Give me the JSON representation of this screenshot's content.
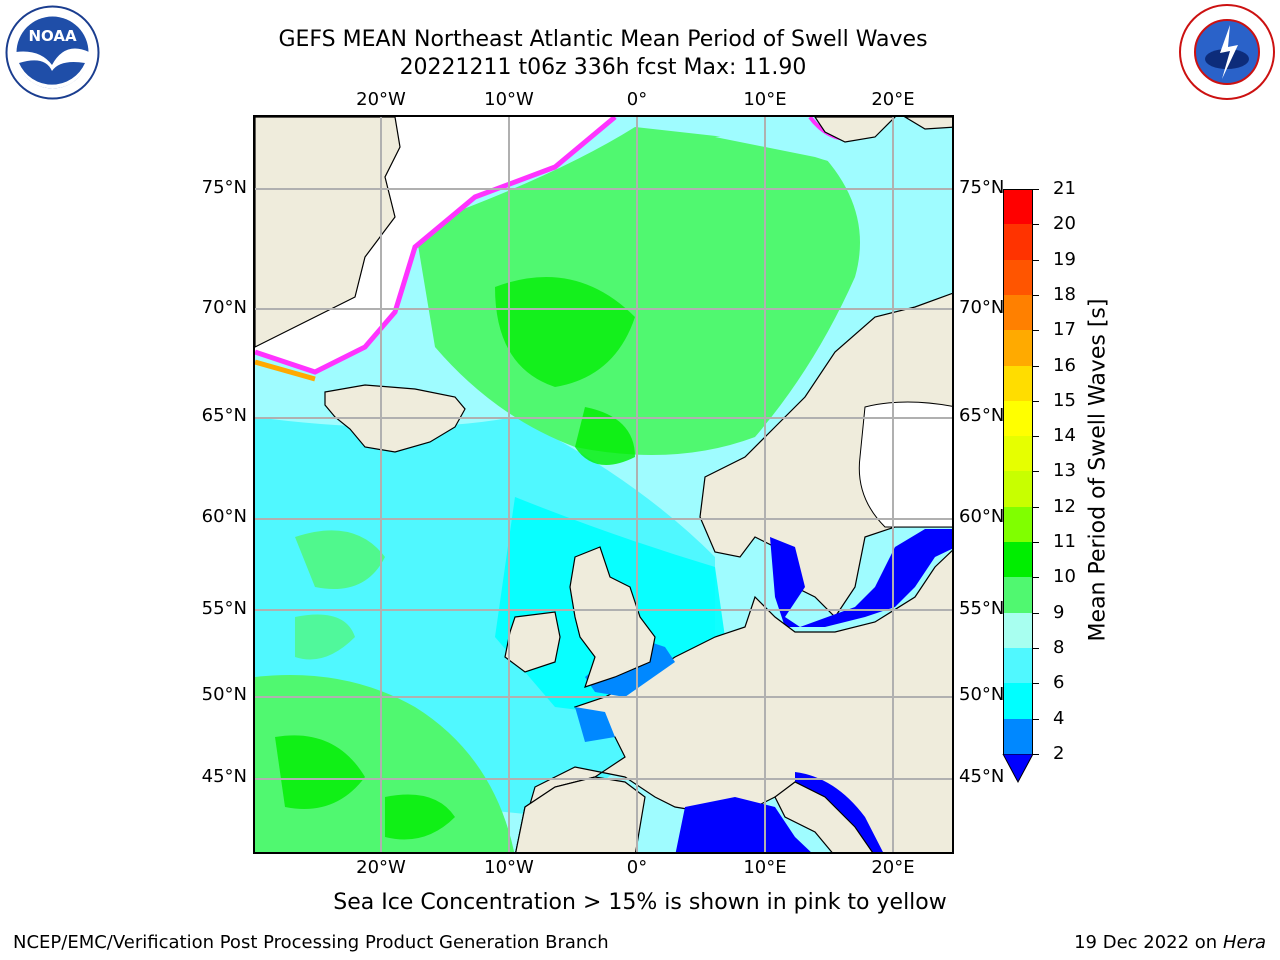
{
  "title_line1": "GEFS MEAN Northeast Atlantic Mean Period of Swell Waves",
  "title_line2": "20221211 t06z 336h fcst   Max: 11.90",
  "note": "Sea Ice Concentration > 15% is shown in pink to yellow",
  "footer_left": "NCEP/EMC/Verification Post Processing Product Generation Branch",
  "footer_date": "19 Dec 2022 on",
  "footer_machine": "Hera",
  "logos": {
    "left": "noaa-logo",
    "right": "national-weather-service-logo"
  },
  "map": {
    "lon_labels": [
      "20°W",
      "10°W",
      "0°",
      "10°E",
      "20°E"
    ],
    "lat_labels": [
      "75°N",
      "70°N",
      "65°N",
      "60°N",
      "55°N",
      "50°N",
      "45°N"
    ],
    "projection_extent": {
      "lon": [
        -30,
        25
      ],
      "lat": [
        41,
        78
      ]
    },
    "colors": {
      "land": "#efecdc",
      "grid": "#b0b0b0",
      "coast": "#000000",
      "ice": "#ff33ff"
    }
  },
  "colorbar": {
    "label": "Mean Period of Swell Waves [s]",
    "ticks": [
      "21",
      "20",
      "19",
      "18",
      "17",
      "16",
      "15",
      "14",
      "13",
      "12",
      "11",
      "10",
      "9",
      "8",
      "6",
      "4",
      "2"
    ],
    "bins": [
      {
        "range": "20-21",
        "color": "#ff0000"
      },
      {
        "range": "19-20",
        "color": "#ff3300"
      },
      {
        "range": "18-19",
        "color": "#ff5500"
      },
      {
        "range": "17-18",
        "color": "#ff8000"
      },
      {
        "range": "16-17",
        "color": "#ffaa00"
      },
      {
        "range": "15-16",
        "color": "#ffdd00"
      },
      {
        "range": "14-15",
        "color": "#ffff00"
      },
      {
        "range": "13-14",
        "color": "#e6ff00"
      },
      {
        "range": "12-13",
        "color": "#c8ff00"
      },
      {
        "range": "11-12",
        "color": "#80ff00"
      },
      {
        "range": "10-11",
        "color": "#00ee00"
      },
      {
        "range": "9-10",
        "color": "#50f870"
      },
      {
        "range": "8-9",
        "color": "#a8fff0"
      },
      {
        "range": "6-8",
        "color": "#50f8ff"
      },
      {
        "range": "4-6",
        "color": "#00ffff"
      },
      {
        "range": "2-4",
        "color": "#0088ff"
      },
      {
        "range": "<2",
        "color": "#0000ff"
      }
    ]
  }
}
